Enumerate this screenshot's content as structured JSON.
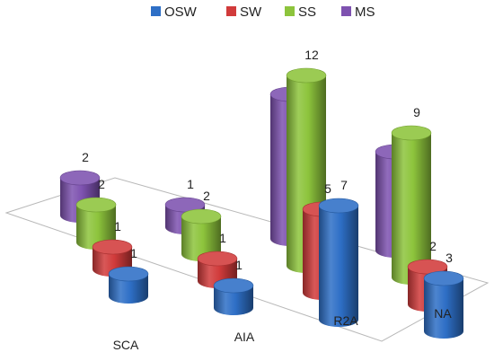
{
  "chart_data": {
    "type": "bar",
    "subtype": "3d-cylinder",
    "title": "",
    "xlabel": "",
    "ylabel": "",
    "categories": [
      "SCA",
      "AIA",
      "R2A",
      "NA"
    ],
    "series": [
      {
        "name": "OSW",
        "values": [
          1,
          1,
          7,
          3
        ],
        "color": "#2E6FC6"
      },
      {
        "name": "SW",
        "values": [
          1,
          1,
          5,
          2
        ],
        "color": "#D13B3B"
      },
      {
        "name": "SS",
        "values": [
          2,
          2,
          12,
          9
        ],
        "color": "#8DC43C"
      },
      {
        "name": "MS",
        "values": [
          2,
          1,
          9,
          6
        ],
        "color": "#7E52B0"
      }
    ],
    "legend_position": "top",
    "grid": false
  }
}
